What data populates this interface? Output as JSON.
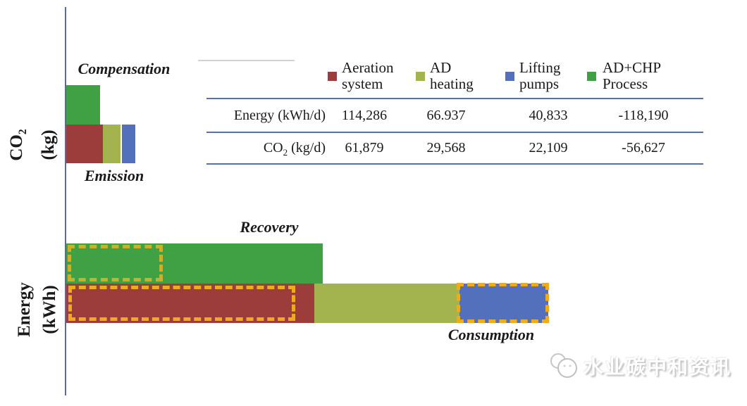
{
  "colors": {
    "aeration": "#9c3d3b",
    "ad_heating": "#a3b44f",
    "lifting_pumps": "#5370bc",
    "ad_chp": "#3fa044",
    "dash_orange": "#ecac1e",
    "dash_olive": "#c9b12b",
    "axis_line": "#5a67ab",
    "table_rule": "#4d72ad"
  },
  "labels": {
    "co2_main": "CO",
    "co2_sub": "2",
    "co2_unit": "(kg)",
    "energy_line1": "Energy",
    "energy_line2": "(kWh)",
    "compensation": "Compensation",
    "emission": "Emission",
    "recovery": "Recovery",
    "consumption": "Consumption"
  },
  "legend": {
    "items": [
      {
        "line1": "Aeration",
        "line2": "system"
      },
      {
        "line1": "AD",
        "line2": "heating"
      },
      {
        "line1": "Lifting",
        "line2": "pumps"
      },
      {
        "line1": "AD+CHP",
        "line2": "Process"
      }
    ]
  },
  "table": {
    "rows": [
      {
        "label": "Energy (kWh/d)",
        "values": [
          "114,286",
          "66.937",
          "40,833",
          "-118,190"
        ]
      },
      {
        "label_main": "CO",
        "label_sub": "2",
        "label_rest": " (kg/d)",
        "values": [
          "61,879",
          "29,568",
          "22,109",
          "-56,627"
        ]
      }
    ]
  },
  "watermark": {
    "text": "水业碳中和资讯"
  },
  "chart_data": {
    "type": "bar",
    "orientation": "horizontal",
    "title": "",
    "legend_position": "top",
    "legend": [
      "Aeration system",
      "AD heating",
      "Lifting pumps",
      "AD+CHP Process"
    ],
    "groups": [
      {
        "axis_label": "CO2 (kg)",
        "bars": [
          {
            "label": "Compensation",
            "segments": [
              {
                "series": "AD+CHP Process",
                "value": 56627
              }
            ]
          },
          {
            "label": "Emission",
            "segments": [
              {
                "series": "Aeration system",
                "value": 61879
              },
              {
                "series": "AD heating",
                "value": 29568
              },
              {
                "series": "Lifting pumps",
                "value": 22109
              }
            ]
          }
        ]
      },
      {
        "axis_label": "Energy (kWh)",
        "bars": [
          {
            "label": "Recovery",
            "segments": [
              {
                "series": "AD+CHP Process",
                "value": 118190
              }
            ]
          },
          {
            "label": "Consumption",
            "segments": [
              {
                "series": "Aeration system",
                "value": 114286
              },
              {
                "series": "AD heating",
                "value": 66937
              },
              {
                "series": "Lifting pumps",
                "value": 40833
              }
            ]
          }
        ]
      }
    ]
  }
}
